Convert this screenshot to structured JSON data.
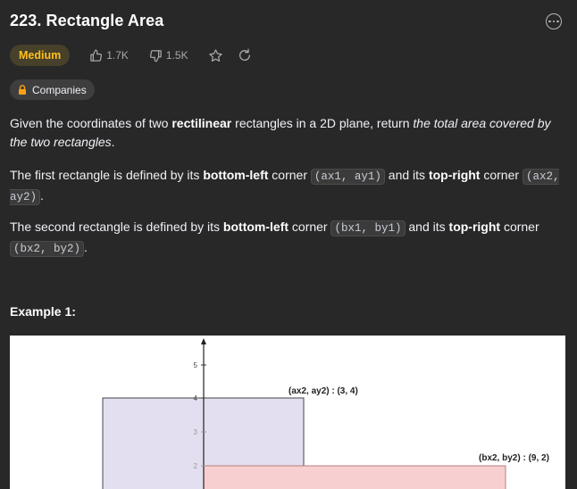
{
  "problem": {
    "title": "223. Rectangle Area",
    "difficulty": "Medium",
    "likes": "1.7K",
    "dislikes": "1.5K",
    "companies_label": "Companies"
  },
  "description": {
    "p1": {
      "t1": "Given the coordinates of two ",
      "b1": "rectilinear",
      "t2": " rectangles in a 2D plane, return ",
      "i1": "the total area covered by the two rectangles",
      "t3": "."
    },
    "p2": {
      "t1": "The first rectangle is defined by its ",
      "b1": "bottom-left",
      "t2": " corner ",
      "c1": "(ax1, ay1)",
      "t3": " and its ",
      "b2": "top-right",
      "t4": " corner ",
      "c2": "(ax2, ay2)",
      "t5": "."
    },
    "p3": {
      "t1": "The second rectangle is defined by its ",
      "b1": "bottom-left",
      "t2": " corner ",
      "c1": "(bx1, by1)",
      "t3": " and its ",
      "b2": "top-right",
      "t4": " corner ",
      "c2": "(bx2, by2)",
      "t5": "."
    }
  },
  "example": {
    "title": "Example 1:"
  },
  "diagram": {
    "y_ticks": [
      "5",
      "4",
      "3",
      "2"
    ],
    "label_a": "(ax2, ay2) : (3, 4)",
    "label_b": "(bx2, by2) : (9, 2)",
    "rect_a_fill": "#e4dff0",
    "rect_b_fill": "#f7cfd0"
  },
  "colors": {
    "difficulty_text": "#ffc01e",
    "difficulty_bg": "#47402a",
    "lock_icon": "#ffa116"
  }
}
